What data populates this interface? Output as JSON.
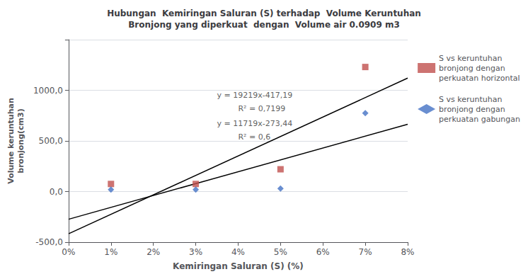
{
  "chart_data": {
    "type": "scatter",
    "title": "Hubungan  Kemiringan Saluran (S) terhadap  Volume Keruntuhan\nBronjong yang diperkuat  dengan  Volume air 0.0909 m3",
    "x_label": "Kemiringan Saluran (S) (%)",
    "y_label": "Volume keruntuhan\nbronjong(cm3)",
    "series": [
      {
        "name": "S vs keruntuhan\nbronjong dengan\nperkuatan horizontal",
        "color": "#C0504D",
        "marker": "square",
        "x": [
          0.01,
          0.03,
          0.05,
          0.07
        ],
        "values": [
          75,
          75,
          220,
          1230
        ]
      },
      {
        "name": "S vs keruntuhan\nbronjong dengan\nperkuatan gabungan",
        "color": "#4472C4",
        "marker": "diamond",
        "x": [
          0.01,
          0.03,
          0.05,
          0.07
        ],
        "values": [
          20,
          20,
          30,
          775
        ]
      },
      {
        "type": "line",
        "color": "black",
        "line_style": "solid",
        "x": [
          0,
          0.08
        ],
        "values": [
          -417.19,
          1120.33
        ]
      },
      {
        "type": "line",
        "color": "black",
        "line_style": "solid",
        "x": [
          0,
          0.08
        ],
        "values": [
          -273.44,
          664.08
        ]
      }
    ],
    "annotations": [
      {
        "text": "y = 19219x-417,19",
        "x": 0.035,
        "y": 950
      },
      {
        "text": "R² = 0,7199",
        "x": 0.04,
        "y": 820
      },
      {
        "text": "y = 11719x-273,44",
        "x": 0.035,
        "y": 670
      },
      {
        "text": "R² = 0,6",
        "x": 0.04,
        "y": 540
      }
    ],
    "xlim": [
      0,
      0.08
    ],
    "ylim": [
      -500,
      1500
    ],
    "xticks": [
      {
        "value": 0,
        "label": "0%"
      },
      {
        "value": 0.01,
        "label": "1%"
      },
      {
        "value": 0.02,
        "label": "2%"
      },
      {
        "value": 0.03,
        "label": "3%"
      },
      {
        "value": 0.04,
        "label": "4%"
      },
      {
        "value": 0.05,
        "label": "5%"
      },
      {
        "value": 0.06,
        "label": "6%"
      },
      {
        "value": 0.07,
        "label": "7%"
      },
      {
        "value": 0.08,
        "label": "8%"
      }
    ],
    "yticks": [
      {
        "value": -500,
        "label": "-500,0"
      },
      {
        "value": 0,
        "label": "0,0"
      },
      {
        "value": 500,
        "label": "500,0"
      },
      {
        "value": 1000,
        "label": "1000,0"
      }
    ],
    "grid": "y",
    "legend": "right"
  }
}
